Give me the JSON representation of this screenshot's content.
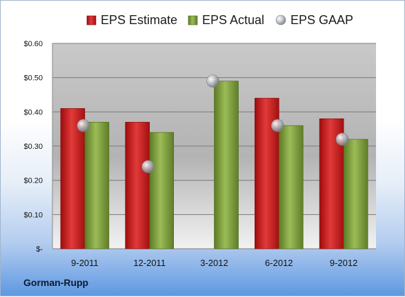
{
  "company": "Gorman-Rupp",
  "colors": {
    "estimate": "#cc1f1f",
    "actual": "#7a9a3a",
    "gaap": "#b8bcc2"
  },
  "chart_data": {
    "type": "bar",
    "categories": [
      "9-2011",
      "12-2011",
      "3-2012",
      "6-2012",
      "9-2012"
    ],
    "series": [
      {
        "name": "EPS Estimate",
        "values": [
          0.41,
          0.37,
          null,
          0.44,
          0.38
        ]
      },
      {
        "name": "EPS Actual",
        "values": [
          0.37,
          0.34,
          0.49,
          0.36,
          0.32
        ]
      },
      {
        "name": "EPS GAAP",
        "values": [
          0.36,
          0.24,
          0.49,
          0.36,
          0.32
        ],
        "marker": "sphere"
      }
    ],
    "ylim": [
      0,
      0.6
    ],
    "y_ticks": [
      {
        "value": 0,
        "label": "$-"
      },
      {
        "value": 0.1,
        "label": "$0.10"
      },
      {
        "value": 0.2,
        "label": "$0.20"
      },
      {
        "value": 0.3,
        "label": "$0.30"
      },
      {
        "value": 0.4,
        "label": "$0.40"
      },
      {
        "value": 0.5,
        "label": "$0.50"
      },
      {
        "value": 0.6,
        "label": "$0.60"
      }
    ],
    "grid": true,
    "legend": "top"
  }
}
